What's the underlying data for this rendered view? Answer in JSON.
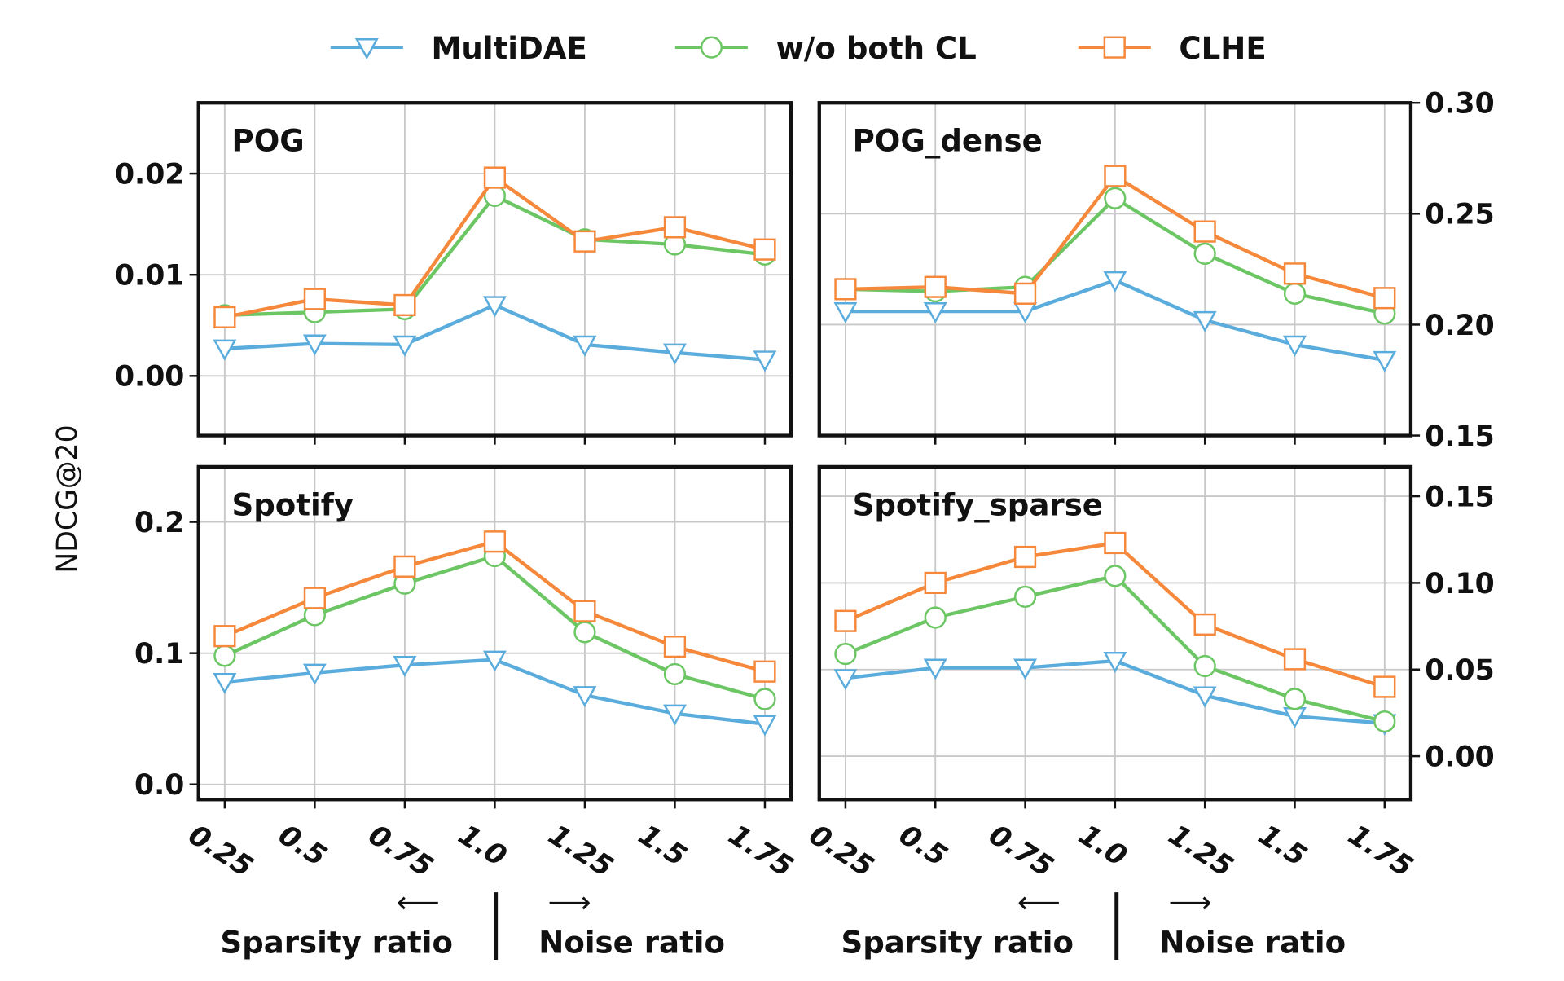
{
  "legend": [
    {
      "name": "MultiDAE",
      "marker": "triangle-down",
      "color": "#5aacdc"
    },
    {
      "name": "w/o both CL",
      "marker": "circle",
      "color": "#6cc664"
    },
    {
      "name": "CLHE",
      "marker": "square",
      "color": "#f5883a"
    }
  ],
  "ylabel": "NDCG@20",
  "xlabel_left": {
    "left": "Sparsity ratio",
    "right": "Noise ratio",
    "left_arrow": "⟵",
    "right_arrow": "⟶",
    "separator": "|"
  },
  "chart_data": [
    {
      "type": "line",
      "title": "POG",
      "y_axis_side": "left",
      "categories": [
        "0.25",
        "0.5",
        "0.75",
        "1.0",
        "1.25",
        "1.5",
        "1.75"
      ],
      "ylim": [
        -0.0059,
        0.027
      ],
      "yticks": [
        0.0,
        0.01,
        0.02
      ],
      "ytick_labels": [
        "0.00",
        "0.01",
        "0.02"
      ],
      "grid": true,
      "series": [
        {
          "name": "MultiDAE",
          "values": [
            0.0027,
            0.0032,
            0.0031,
            0.007,
            0.0031,
            0.0023,
            0.0016
          ]
        },
        {
          "name": "w/o both CL",
          "values": [
            0.006,
            0.0063,
            0.0066,
            0.0178,
            0.0135,
            0.013,
            0.012
          ]
        },
        {
          "name": "CLHE",
          "values": [
            0.0058,
            0.0076,
            0.007,
            0.0196,
            0.0133,
            0.0147,
            0.0125
          ]
        }
      ]
    },
    {
      "type": "line",
      "title": "POG_dense",
      "y_axis_side": "right",
      "categories": [
        "0.25",
        "0.5",
        "0.75",
        "1.0",
        "1.25",
        "1.5",
        "1.75"
      ],
      "ylim": [
        0.15,
        0.3
      ],
      "yticks": [
        0.15,
        0.2,
        0.25,
        0.3
      ],
      "ytick_labels": [
        "0.15",
        "0.20",
        "0.25",
        "0.30"
      ],
      "grid": true,
      "series": [
        {
          "name": "MultiDAE",
          "values": [
            0.206,
            0.206,
            0.206,
            0.22,
            0.202,
            0.191,
            0.184
          ]
        },
        {
          "name": "w/o both CL",
          "values": [
            0.216,
            0.215,
            0.217,
            0.257,
            0.232,
            0.214,
            0.205
          ]
        },
        {
          "name": "CLHE",
          "values": [
            0.216,
            0.217,
            0.214,
            0.267,
            0.242,
            0.223,
            0.212
          ]
        }
      ]
    },
    {
      "type": "line",
      "title": "Spotify",
      "y_axis_side": "left",
      "categories": [
        "0.25",
        "0.5",
        "0.75",
        "1.0",
        "1.25",
        "1.5",
        "1.75"
      ],
      "ylim": [
        -0.0115,
        0.242
      ],
      "yticks": [
        0.0,
        0.1,
        0.2
      ],
      "ytick_labels": [
        "0.0",
        "0.1",
        "0.2"
      ],
      "grid": true,
      "series": [
        {
          "name": "MultiDAE",
          "values": [
            0.078,
            0.085,
            0.091,
            0.095,
            0.068,
            0.054,
            0.046
          ]
        },
        {
          "name": "w/o both CL",
          "values": [
            0.098,
            0.129,
            0.153,
            0.174,
            0.116,
            0.084,
            0.065
          ]
        },
        {
          "name": "CLHE",
          "values": [
            0.113,
            0.142,
            0.166,
            0.185,
            0.132,
            0.105,
            0.086
          ]
        }
      ]
    },
    {
      "type": "line",
      "title": "Spotify_sparse",
      "y_axis_side": "right",
      "categories": [
        "0.25",
        "0.5",
        "0.75",
        "1.0",
        "1.25",
        "1.5",
        "1.75"
      ],
      "ylim": [
        -0.025,
        0.167
      ],
      "yticks": [
        0.0,
        0.05,
        0.1,
        0.15
      ],
      "ytick_labels": [
        "0.00",
        "0.05",
        "0.10",
        "0.15"
      ],
      "grid": true,
      "series": [
        {
          "name": "MultiDAE",
          "values": [
            0.045,
            0.051,
            0.051,
            0.055,
            0.035,
            0.023,
            0.019
          ]
        },
        {
          "name": "w/o both CL",
          "values": [
            0.059,
            0.08,
            0.092,
            0.104,
            0.052,
            0.033,
            0.02
          ]
        },
        {
          "name": "CLHE",
          "values": [
            0.078,
            0.1,
            0.115,
            0.123,
            0.076,
            0.056,
            0.04
          ]
        }
      ]
    }
  ]
}
